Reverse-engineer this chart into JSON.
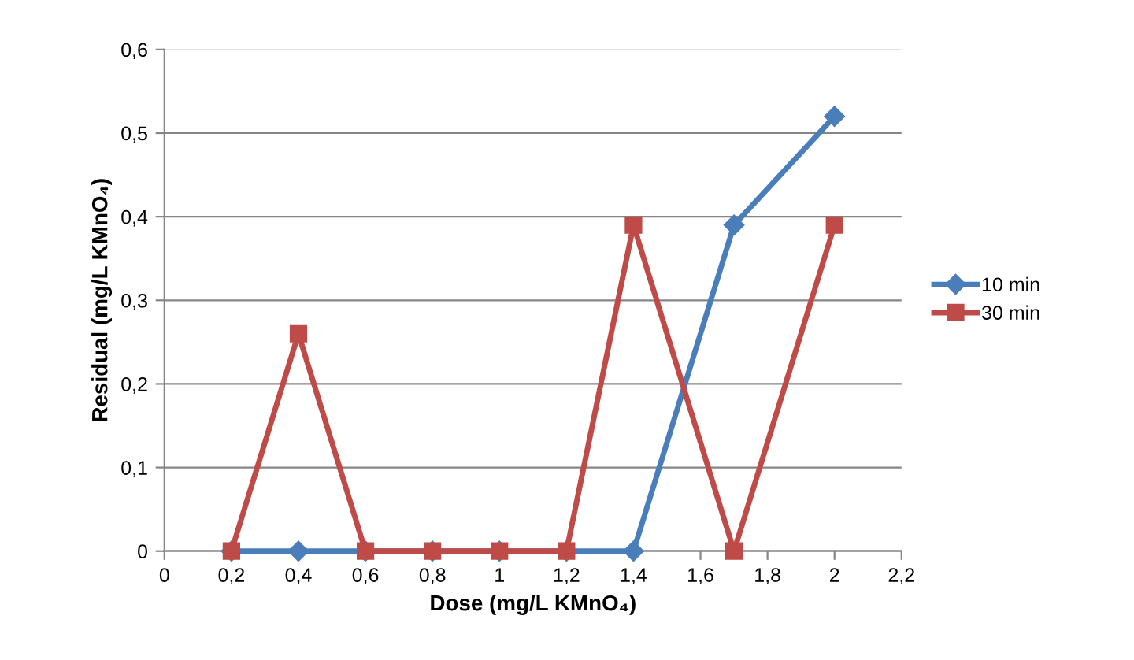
{
  "chart_data": {
    "type": "line",
    "xlabel": "Dose (mg/L KMnO₄)",
    "ylabel": "Residual (mg/L KMnO₄)",
    "x": [
      0.2,
      0.4,
      0.6,
      0.8,
      1,
      1.2,
      1.4,
      1.7,
      2
    ],
    "series": [
      {
        "name": "10 min",
        "color": "#4a7ebb",
        "marker": "diamond",
        "values": [
          0,
          0,
          0,
          0,
          0,
          0,
          0,
          0.39,
          0.52
        ]
      },
      {
        "name": "30 min",
        "color": "#be4b48",
        "marker": "square",
        "values": [
          0,
          0.26,
          0,
          0,
          0,
          0,
          0.39,
          0,
          0.39
        ]
      }
    ],
    "xlim": [
      0,
      2.2
    ],
    "xticks": [
      0,
      {
        "value": 0.2,
        "label": "0,2"
      },
      {
        "value": 0.4,
        "label": "0,4"
      },
      {
        "value": 0.6,
        "label": "0,6"
      },
      {
        "value": 0.8,
        "label": "0,8"
      },
      1,
      {
        "value": 1.2,
        "label": "1,2"
      },
      {
        "value": 1.4,
        "label": "1,4"
      },
      {
        "value": 1.6,
        "label": "1,6"
      },
      {
        "value": 1.8,
        "label": "1,8"
      },
      2,
      {
        "value": 2.2,
        "label": "2,2"
      }
    ],
    "ylim": [
      0,
      0.6
    ],
    "yticks": [
      0,
      {
        "value": 0.1,
        "label": "0,1"
      },
      {
        "value": 0.2,
        "label": "0,2"
      },
      {
        "value": 0.3,
        "label": "0,3"
      },
      {
        "value": 0.4,
        "label": "0,4"
      },
      {
        "value": 0.5,
        "label": "0,5"
      },
      {
        "value": 0.6,
        "label": "0,6"
      }
    ],
    "grid": "y",
    "legend": "right",
    "line_style": "solid"
  }
}
